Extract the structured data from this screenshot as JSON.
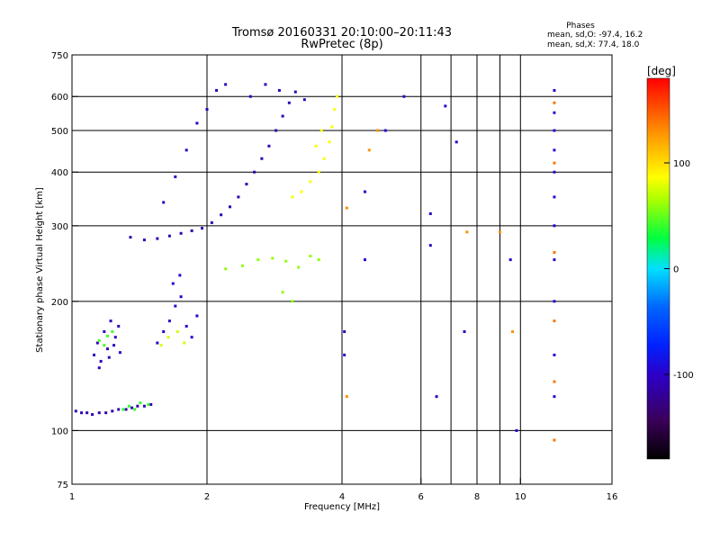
{
  "title_line1": "Tromsø 20160331 20:10:00–20:11:43",
  "title_line2": "RwPretec (8p)",
  "stats": {
    "heading": "Phases",
    "line1": "mean, sd,O: -97.4, 16.2",
    "line2": "mean, sd,X:  77.4, 18.0"
  },
  "colors": {
    "ink": "#000000",
    "background": "#ffffff"
  },
  "chart_data": {
    "type": "scatter",
    "xlabel": "Frequency [MHz]",
    "ylabel": "Stationary phase Virtual Height [km]",
    "x_scale": "log",
    "y_scale": "log",
    "xlim": [
      1,
      16
    ],
    "ylim": [
      75,
      750
    ],
    "x_ticks": [
      1,
      2,
      4,
      6,
      8,
      10,
      16
    ],
    "x_tick_labels": [
      "1",
      "2",
      "4",
      "6",
      "8",
      "10",
      "16"
    ],
    "x_minor_ticks": [
      7,
      9
    ],
    "y_ticks": [
      75,
      100,
      200,
      300,
      400,
      500,
      600,
      750
    ],
    "y_tick_labels": [
      "75",
      "100",
      "200",
      "300",
      "400",
      "500",
      "600",
      "750"
    ],
    "grid": true,
    "colorbar": {
      "label": "[deg]",
      "range": [
        -180,
        180
      ],
      "ticks": [
        100,
        0,
        -100
      ],
      "tick_labels": [
        "100",
        "0",
        "-100"
      ]
    },
    "series": [
      {
        "trace": "E-layer",
        "phase_deg": -110,
        "points": [
          [
            1.02,
            111
          ],
          [
            1.05,
            110
          ],
          [
            1.08,
            110
          ],
          [
            1.11,
            109
          ],
          [
            1.15,
            110
          ],
          [
            1.19,
            110
          ],
          [
            1.23,
            111
          ],
          [
            1.27,
            112
          ],
          [
            1.32,
            112
          ],
          [
            1.36,
            113
          ],
          [
            1.4,
            114
          ],
          [
            1.45,
            114
          ],
          [
            1.5,
            115
          ]
        ]
      },
      {
        "trace": "E-layer-green",
        "phase_deg": 40,
        "points": [
          [
            1.3,
            112
          ],
          [
            1.34,
            114
          ],
          [
            1.38,
            112
          ],
          [
            1.42,
            116
          ],
          [
            1.48,
            115
          ]
        ]
      },
      {
        "trace": "low-F-blob-1",
        "phase_deg": -105,
        "points": [
          [
            1.12,
            150
          ],
          [
            1.14,
            160
          ],
          [
            1.16,
            145
          ],
          [
            1.18,
            170
          ],
          [
            1.2,
            155
          ],
          [
            1.22,
            180
          ],
          [
            1.25,
            165
          ],
          [
            1.27,
            175
          ],
          [
            1.15,
            140
          ],
          [
            1.21,
            148
          ],
          [
            1.24,
            158
          ],
          [
            1.28,
            152
          ]
        ]
      },
      {
        "trace": "low-F-blob-1-green",
        "phase_deg": 45,
        "points": [
          [
            1.15,
            162
          ],
          [
            1.18,
            158
          ],
          [
            1.2,
            166
          ],
          [
            1.23,
            170
          ]
        ]
      },
      {
        "trace": "low-F-blob-2",
        "phase_deg": -100,
        "points": [
          [
            1.55,
            160
          ],
          [
            1.6,
            170
          ],
          [
            1.65,
            180
          ],
          [
            1.7,
            195
          ],
          [
            1.75,
            205
          ],
          [
            1.8,
            175
          ],
          [
            1.85,
            165
          ],
          [
            1.9,
            185
          ],
          [
            1.68,
            220
          ],
          [
            1.74,
            230
          ]
        ]
      },
      {
        "trace": "low-F-blob-2-yellow",
        "phase_deg": 75,
        "points": [
          [
            1.58,
            158
          ],
          [
            1.64,
            165
          ],
          [
            1.72,
            170
          ],
          [
            1.78,
            160
          ]
        ]
      },
      {
        "trace": "O-mode-F",
        "phase_deg": -110,
        "points": [
          [
            1.35,
            282
          ],
          [
            1.45,
            278
          ],
          [
            1.55,
            280
          ],
          [
            1.65,
            284
          ],
          [
            1.75,
            288
          ],
          [
            1.85,
            292
          ],
          [
            1.95,
            296
          ],
          [
            2.05,
            305
          ],
          [
            2.15,
            318
          ],
          [
            2.25,
            332
          ],
          [
            2.35,
            350
          ],
          [
            2.45,
            375
          ],
          [
            2.55,
            400
          ],
          [
            2.65,
            430
          ],
          [
            2.75,
            460
          ],
          [
            2.85,
            500
          ],
          [
            2.95,
            540
          ],
          [
            3.05,
            580
          ],
          [
            3.15,
            615
          ]
        ]
      },
      {
        "trace": "O-mode-F-upper",
        "phase_deg": -105,
        "points": [
          [
            1.6,
            340
          ],
          [
            1.7,
            390
          ],
          [
            1.8,
            450
          ],
          [
            1.9,
            520
          ],
          [
            2.0,
            560
          ],
          [
            2.1,
            620
          ],
          [
            2.2,
            640
          ],
          [
            2.5,
            600
          ],
          [
            2.7,
            640
          ],
          [
            2.9,
            620
          ],
          [
            3.3,
            590
          ]
        ]
      },
      {
        "trace": "X-mode-F",
        "phase_deg": 85,
        "points": [
          [
            3.1,
            350
          ],
          [
            3.25,
            360
          ],
          [
            3.4,
            380
          ],
          [
            3.55,
            400
          ],
          [
            3.65,
            430
          ],
          [
            3.75,
            470
          ],
          [
            3.8,
            510
          ],
          [
            3.85,
            560
          ],
          [
            3.9,
            600
          ],
          [
            3.6,
            500
          ],
          [
            3.5,
            460
          ]
        ]
      },
      {
        "trace": "mid-F-green",
        "phase_deg": 60,
        "points": [
          [
            2.2,
            238
          ],
          [
            2.4,
            242
          ],
          [
            2.6,
            250
          ],
          [
            2.8,
            252
          ],
          [
            3.0,
            248
          ],
          [
            3.2,
            240
          ],
          [
            3.4,
            255
          ],
          [
            3.55,
            250
          ],
          [
            2.95,
            210
          ],
          [
            3.1,
            200
          ]
        ]
      },
      {
        "trace": "high-frequency-column",
        "phase_deg": -95,
        "points": [
          [
            11.9,
            120
          ],
          [
            11.9,
            150
          ],
          [
            11.9,
            200
          ],
          [
            11.9,
            250
          ],
          [
            11.9,
            300
          ],
          [
            11.9,
            350
          ],
          [
            11.9,
            400
          ],
          [
            11.9,
            450
          ],
          [
            11.9,
            500
          ],
          [
            11.9,
            550
          ],
          [
            11.9,
            620
          ]
        ]
      },
      {
        "trace": "high-frequency-column-warm",
        "phase_deg": 140,
        "points": [
          [
            11.9,
            95
          ],
          [
            11.9,
            130
          ],
          [
            11.9,
            180
          ],
          [
            11.9,
            260
          ],
          [
            11.9,
            420
          ],
          [
            11.9,
            580
          ]
        ]
      },
      {
        "trace": "scattered",
        "phase_deg": -100,
        "points": [
          [
            4.05,
            170
          ],
          [
            4.05,
            150
          ],
          [
            4.5,
            250
          ],
          [
            4.5,
            360
          ],
          [
            6.3,
            320
          ],
          [
            6.3,
            270
          ],
          [
            6.5,
            120
          ],
          [
            7.2,
            470
          ],
          [
            7.5,
            170
          ],
          [
            9.5,
            250
          ],
          [
            9.8,
            100
          ],
          [
            5.0,
            500
          ],
          [
            5.5,
            600
          ],
          [
            6.8,
            570
          ]
        ]
      },
      {
        "trace": "scattered-warm",
        "phase_deg": 130,
        "points": [
          [
            4.1,
            330
          ],
          [
            4.1,
            120
          ],
          [
            4.6,
            450
          ],
          [
            7.6,
            290
          ],
          [
            9.0,
            290
          ],
          [
            9.6,
            170
          ],
          [
            4.8,
            500
          ]
        ]
      }
    ]
  }
}
